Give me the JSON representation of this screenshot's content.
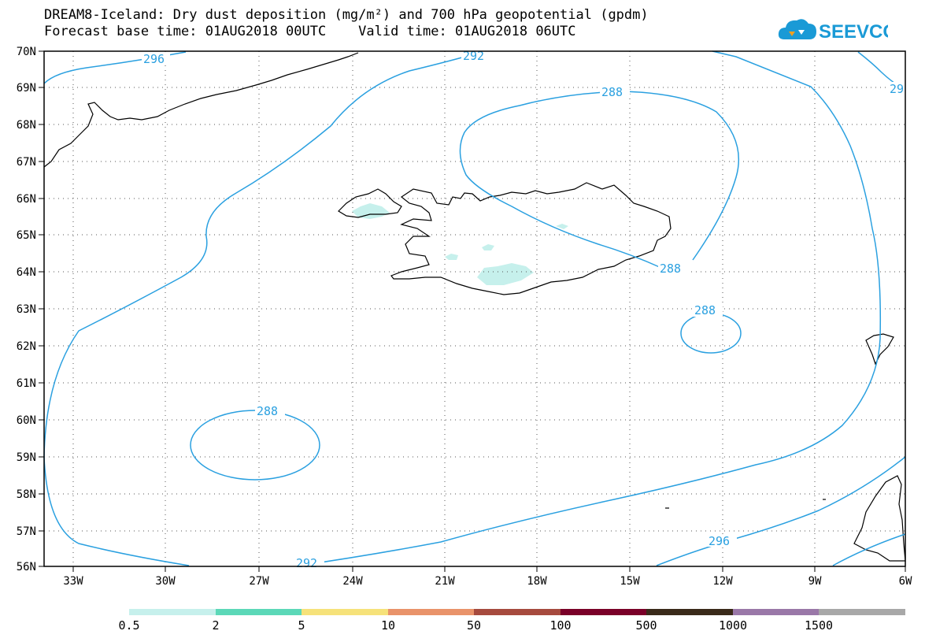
{
  "header": {
    "title_line1": "DREAM8-Iceland: Dry dust deposition (mg/m²) and 700 hPa geopotential (gpdm)",
    "title_line2": "Forecast base time: 01AUG2018 00UTC    Valid time: 01AUG2018 06UTC",
    "logo_text": "SEEVCCC",
    "logo_icon": "cloud-icon",
    "logo_color": "#1a9ad6"
  },
  "map": {
    "lon_range": [
      -34,
      -6
    ],
    "lat_range": [
      56,
      70
    ],
    "lon_ticks": [
      "33W",
      "30W",
      "27W",
      "24W",
      "21W",
      "18W",
      "15W",
      "12W",
      "9W",
      "6W"
    ],
    "lat_ticks": [
      "70N",
      "69N",
      "68N",
      "67N",
      "66N",
      "65N",
      "64N",
      "63N",
      "62N",
      "61N",
      "60N",
      "59N",
      "58N",
      "57N",
      "56N"
    ],
    "gridlines": "dotted",
    "contour_color": "#2aa0e0",
    "contour_labels": [
      "296",
      "292",
      "288",
      "29",
      "288",
      "288",
      "288",
      "296",
      "292"
    ]
  },
  "colorbar": {
    "labels": [
      "0.5",
      "2",
      "5",
      "10",
      "50",
      "100",
      "500",
      "1000",
      "1500"
    ],
    "colors": [
      "#c6f0ec",
      "#5cd8b8",
      "#f6e27a",
      "#e9936a",
      "#a64a3e",
      "#7a0028",
      "#3a2a1a",
      "#9a78a8",
      "#a8a8a8"
    ]
  }
}
